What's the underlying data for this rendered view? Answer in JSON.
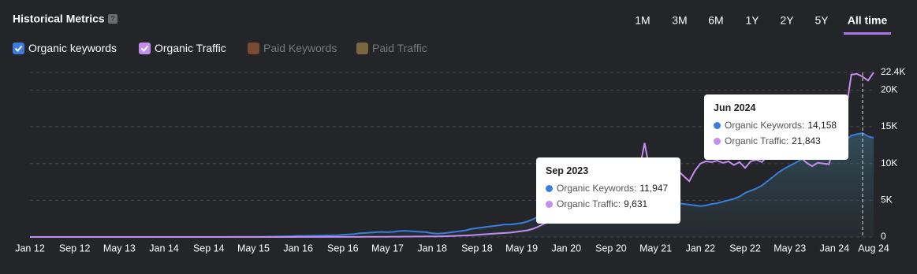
{
  "header": {
    "title": "Historical Metrics",
    "help_icon": "?",
    "ranges": [
      "1M",
      "3M",
      "6M",
      "1Y",
      "2Y",
      "5Y",
      "All time"
    ],
    "active_range": "All time"
  },
  "chart_data": {
    "type": "line",
    "categories": [
      "Jan 12",
      null,
      null,
      null,
      null,
      null,
      null,
      null,
      "Sep 12",
      null,
      null,
      null,
      null,
      null,
      null,
      null,
      "May 13",
      null,
      null,
      null,
      null,
      null,
      null,
      null,
      "Jan 14",
      null,
      null,
      null,
      null,
      null,
      null,
      null,
      "Sep 14",
      null,
      null,
      null,
      null,
      null,
      null,
      null,
      "May 15",
      null,
      null,
      null,
      null,
      null,
      null,
      null,
      "Jan 16",
      null,
      null,
      null,
      null,
      null,
      null,
      null,
      "Sep 16",
      null,
      null,
      null,
      null,
      null,
      null,
      null,
      "May 17",
      null,
      null,
      null,
      null,
      null,
      null,
      null,
      "Jan 18",
      null,
      null,
      null,
      null,
      null,
      null,
      null,
      "Sep 18",
      null,
      null,
      null,
      null,
      null,
      null,
      null,
      "May 19",
      null,
      null,
      null,
      null,
      null,
      null,
      null,
      "Jan 20",
      null,
      null,
      null,
      null,
      null,
      null,
      null,
      "Sep 20",
      null,
      null,
      null,
      null,
      null,
      null,
      null,
      "May 21",
      null,
      null,
      null,
      null,
      null,
      null,
      null,
      "Jan 22",
      null,
      null,
      null,
      null,
      null,
      null,
      null,
      "Sep 22",
      null,
      null,
      null,
      null,
      null,
      null,
      null,
      "May 23",
      null,
      null,
      null,
      null,
      null,
      null,
      null,
      "Jan 24",
      null,
      null,
      null,
      null,
      null,
      null,
      "Aug 24"
    ],
    "series": [
      {
        "name": "Organic keywords",
        "color": "#3b7ddd",
        "area": true,
        "values": [
          10,
          10,
          10,
          10,
          10,
          10,
          10,
          10,
          10,
          10,
          10,
          10,
          10,
          10,
          10,
          10,
          10,
          10,
          10,
          10,
          10,
          10,
          10,
          10,
          10,
          10,
          10,
          10,
          10,
          10,
          10,
          10,
          10,
          10,
          10,
          10,
          20,
          20,
          20,
          20,
          30,
          30,
          40,
          50,
          60,
          80,
          100,
          120,
          150,
          150,
          160,
          170,
          180,
          200,
          220,
          250,
          300,
          350,
          400,
          500,
          550,
          600,
          650,
          700,
          650,
          700,
          800,
          850,
          800,
          750,
          700,
          650,
          500,
          450,
          500,
          600,
          700,
          800,
          900,
          1100,
          1200,
          1300,
          1400,
          1500,
          1600,
          1700,
          1700,
          1800,
          1900,
          2100,
          2400,
          2800,
          3200,
          3500,
          3800,
          4000,
          4200,
          4300,
          4200,
          4000,
          4100,
          4300,
          4500,
          4700,
          4800,
          4900,
          5000,
          5100,
          5300,
          5500,
          5600,
          5400,
          5100,
          4900,
          4800,
          4700,
          4600,
          4500,
          4400,
          4300,
          4200,
          4300,
          4500,
          4600,
          4800,
          5000,
          5200,
          5500,
          6000,
          6300,
          6600,
          7000,
          7600,
          8200,
          8800,
          9300,
          9700,
          10100,
          10500,
          11000,
          11947,
          11500,
          10900,
          11200,
          11800,
          12600,
          13200,
          13800,
          14000,
          14158,
          13700,
          13500
        ]
      },
      {
        "name": "Organic Traffic",
        "color": "#c38ef0",
        "values": [
          0,
          0,
          0,
          0,
          0,
          0,
          0,
          0,
          0,
          0,
          0,
          0,
          0,
          0,
          0,
          0,
          0,
          0,
          0,
          0,
          0,
          0,
          0,
          0,
          0,
          0,
          0,
          0,
          0,
          0,
          0,
          0,
          0,
          0,
          0,
          0,
          0,
          0,
          0,
          0,
          0,
          0,
          0,
          0,
          0,
          0,
          0,
          0,
          10,
          10,
          10,
          10,
          10,
          10,
          10,
          10,
          10,
          10,
          10,
          10,
          20,
          20,
          30,
          30,
          30,
          40,
          40,
          50,
          50,
          60,
          60,
          70,
          80,
          90,
          100,
          120,
          150,
          180,
          200,
          250,
          300,
          350,
          400,
          450,
          500,
          550,
          600,
          700,
          800,
          900,
          1100,
          1400,
          1800,
          2100,
          2300,
          2500,
          2600,
          2800,
          3000,
          3200,
          3500,
          3800,
          4200,
          4600,
          5000,
          5500,
          6500,
          8000,
          8500,
          8800,
          12800,
          8700,
          8600,
          8700,
          8600,
          8500,
          9000,
          8300,
          7600,
          9000,
          10000,
          10300,
          10200,
          10400,
          10100,
          10300,
          9800,
          10200,
          9400,
          10300,
          10500,
          10200,
          11000,
          11500,
          11300,
          12000,
          12500,
          11800,
          10800,
          10100,
          9631,
          10100,
          10000,
          9900,
          12500,
          14500,
          17000,
          22100,
          22200,
          21843,
          21300,
          22400
        ]
      }
    ],
    "inactive_series": [
      {
        "name": "Paid Keywords",
        "color": "#7a4a33"
      },
      {
        "name": "Paid Traffic",
        "color": "#7a6640"
      }
    ],
    "ylim": [
      0,
      22400
    ],
    "yticks": [
      0,
      {
        "value": 5000,
        "label": "5K"
      },
      {
        "value": 10000,
        "label": "10K"
      },
      {
        "value": 15000,
        "label": "15K"
      },
      {
        "value": 20000,
        "label": "20K"
      },
      {
        "value": 22400,
        "label": "22.4K"
      }
    ],
    "grid": true,
    "tooltips": [
      {
        "title": "Sep 2023",
        "items": [
          {
            "name": "Organic Keywords:",
            "value": 11947,
            "label": "11,947",
            "color": "#3b7ddd"
          },
          {
            "name": "Organic Traffic:",
            "value": 9631,
            "label": "9,631",
            "color": "#c38ef0"
          }
        ]
      },
      {
        "title": "Jun 2024",
        "items": [
          {
            "name": "Organic Keywords:",
            "value": 14158,
            "label": "14,158",
            "color": "#3b7ddd"
          },
          {
            "name": "Organic Traffic:",
            "value": 21843,
            "label": "21,843",
            "color": "#c38ef0"
          }
        ]
      }
    ]
  }
}
